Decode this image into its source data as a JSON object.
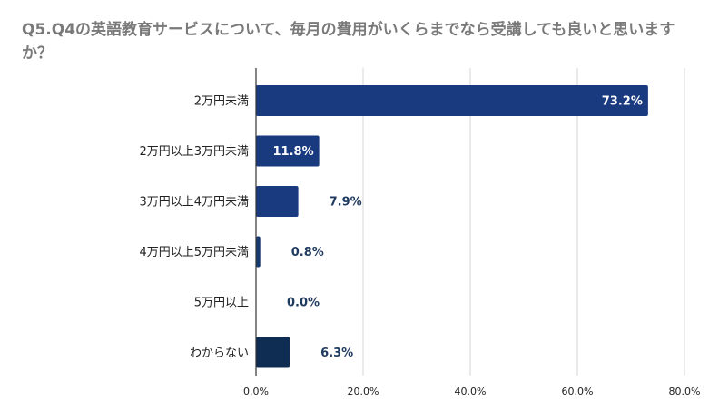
{
  "chart_data": {
    "type": "bar",
    "orientation": "horizontal",
    "title": "Q5.Q4の英語教育サービスについて、毎月の費用がいくらまでなら受講しても良いと思いますか？",
    "categories": [
      "2万円未満",
      "2万円以上3万円未満",
      "3万円以上4万円未満",
      "4万円以上5万円未満",
      "5万円以上",
      "わからない"
    ],
    "values": [
      73.2,
      11.8,
      7.9,
      0.8,
      0.0,
      6.3
    ],
    "value_labels": [
      "73.2%",
      "11.8%",
      "7.9%",
      "0.8%",
      "0.0%",
      "6.3%"
    ],
    "bar_colors": [
      "#1a3a80",
      "#1a3a80",
      "#1a3a80",
      "#173a6e",
      "#173a6e",
      "#0f2d52"
    ],
    "xlim": [
      0,
      80
    ],
    "xticks": [
      0,
      20,
      40,
      60,
      80
    ],
    "xtick_labels": [
      "0.0%",
      "20.0%",
      "40.0%",
      "60.0%",
      "80.0%"
    ],
    "grid": true,
    "legend": "none"
  }
}
